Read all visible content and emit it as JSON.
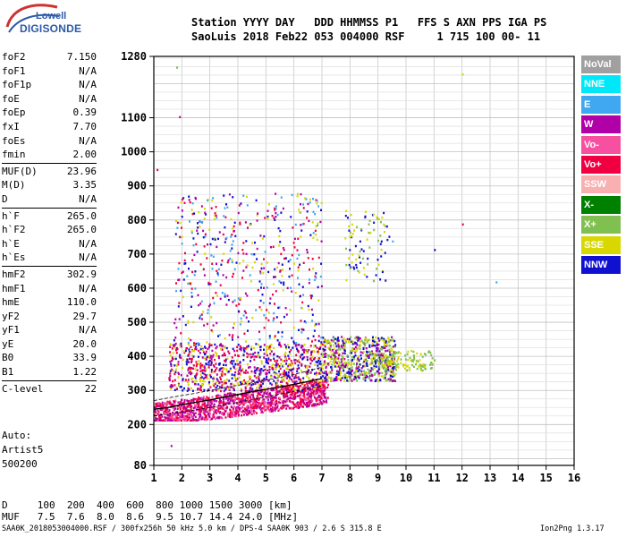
{
  "logo": {
    "line1": "Lowell",
    "line2": "DIGISONDE"
  },
  "header": {
    "line1": "Station YYYY DAY   DDD HHMMSS P1   FFS S AXN PPS IGA PS",
    "line2": "SaoLuis 2018 Feb22 053 004000 RSF     1 715 100 00- 11"
  },
  "params": [
    {
      "label": "foF2",
      "value": "7.150"
    },
    {
      "label": "foF1",
      "value": "N/A"
    },
    {
      "label": "foF1p",
      "value": "N/A"
    },
    {
      "label": "foE",
      "value": "N/A"
    },
    {
      "label": "foEp",
      "value": "0.39"
    },
    {
      "label": "fxI",
      "value": "7.70"
    },
    {
      "label": "foEs",
      "value": "N/A"
    },
    {
      "label": "fmin",
      "value": "2.00"
    },
    {
      "label": "MUF(D)",
      "value": "23.96"
    },
    {
      "label": "M(D)",
      "value": "3.35"
    },
    {
      "label": "D",
      "value": "N/A"
    },
    {
      "label": "h`F",
      "value": "265.0"
    },
    {
      "label": "h`F2",
      "value": "265.0"
    },
    {
      "label": "h`E",
      "value": "N/A"
    },
    {
      "label": "h`Es",
      "value": "N/A"
    },
    {
      "label": "hmF2",
      "value": "302.9"
    },
    {
      "label": "hmF1",
      "value": "N/A"
    },
    {
      "label": "hmE",
      "value": "110.0"
    },
    {
      "label": "yF2",
      "value": "29.7"
    },
    {
      "label": "yF1",
      "value": "N/A"
    },
    {
      "label": "yE",
      "value": "20.0"
    },
    {
      "label": "B0",
      "value": "33.9"
    },
    {
      "label": "B1",
      "value": "1.22"
    },
    {
      "label": "C-level",
      "value": "22"
    }
  ],
  "auto": {
    "line1": "Auto:",
    "line2": "Artist5",
    "line3": "500200"
  },
  "legend": [
    {
      "label": "NoVal",
      "color": "#a0a0a0"
    },
    {
      "label": "NNE",
      "color": "#00e8f8"
    },
    {
      "label": "E",
      "color": "#40a8f0"
    },
    {
      "label": "W",
      "color": "#b000a8"
    },
    {
      "label": "Vo-",
      "color": "#f850a0"
    },
    {
      "label": "Vo+",
      "color": "#f00040"
    },
    {
      "label": "SSW",
      "color": "#f8b0b0"
    },
    {
      "label": "X-",
      "color": "#008000"
    },
    {
      "label": "X+",
      "color": "#80c050"
    },
    {
      "label": "SSE",
      "color": "#d8d800"
    },
    {
      "label": "NNW",
      "color": "#1010d0"
    }
  ],
  "bottom": {
    "d_row": "D     100  200  400  600  800 1000 1500 3000 [km]",
    "muf_row": "MUF   7.5  7.6  8.0  8.6  9.5 10.7 14.4 24.0 [MHz]",
    "footer_left": "SAA0K_2018053004000.RSF / 300fx256h 50 kHz 5.0 km / DPS-4 SAA0K 903 / 2.6 S 315.8 E",
    "footer_right": "Ion2Png 1.3.17"
  },
  "chart_data": {
    "type": "scatter",
    "x_ticks": [
      1,
      2,
      3,
      4,
      5,
      6,
      7,
      8,
      9,
      10,
      11,
      12,
      13,
      14,
      15,
      16
    ],
    "y_ticks": [
      80,
      200,
      300,
      400,
      500,
      600,
      700,
      800,
      900,
      1000,
      1100,
      1280
    ],
    "xlim": [
      1,
      16
    ],
    "ylim": [
      80,
      1280
    ],
    "grid": true,
    "legend_position": "right",
    "trace_points": [
      [
        1.0,
        245
      ],
      [
        1.5,
        250
      ],
      [
        2.0,
        258
      ],
      [
        2.5,
        265
      ],
      [
        3.0,
        272
      ],
      [
        3.5,
        280
      ],
      [
        4.0,
        288
      ],
      [
        4.5,
        296
      ],
      [
        5.0,
        303
      ],
      [
        5.5,
        310
      ],
      [
        6.0,
        318
      ],
      [
        6.5,
        326
      ],
      [
        7.0,
        335
      ]
    ],
    "trace_upper": [
      [
        1.0,
        270
      ],
      [
        1.5,
        278
      ],
      [
        2.0,
        285
      ],
      [
        2.5,
        292
      ],
      [
        3.0,
        300
      ],
      [
        3.5,
        308
      ],
      [
        4.0,
        315
      ],
      [
        4.5,
        322
      ],
      [
        5.0,
        330
      ],
      [
        5.5,
        338
      ],
      [
        6.0,
        347
      ],
      [
        6.5,
        357
      ],
      [
        7.0,
        368
      ]
    ],
    "trace_lower": [
      [
        1.0,
        225
      ],
      [
        1.5,
        230
      ],
      [
        2.0,
        237
      ],
      [
        2.5,
        243
      ],
      [
        3.0,
        250
      ],
      [
        3.5,
        257
      ],
      [
        4.0,
        265
      ],
      [
        4.5,
        273
      ],
      [
        5.0,
        281
      ],
      [
        5.5,
        289
      ],
      [
        6.0,
        297
      ],
      [
        6.5,
        305
      ],
      [
        7.0,
        313
      ]
    ],
    "echo_clusters": [
      {
        "x": [
          1.0,
          7.2
        ],
        "y": [
          215,
          330
        ],
        "colors": [
          "#f00040",
          "#f850a0",
          "#b000a8"
        ]
      },
      {
        "x": [
          1.5,
          7.0
        ],
        "y": [
          300,
          440
        ],
        "colors": [
          "#1010d0",
          "#b000a8",
          "#d8d800",
          "#f00040"
        ]
      },
      {
        "x": [
          7.0,
          9.6
        ],
        "y": [
          330,
          460
        ],
        "colors": [
          "#d8d800",
          "#80c050",
          "#1010d0",
          "#b000a8"
        ]
      },
      {
        "x": [
          9.0,
          11.0
        ],
        "y": [
          360,
          420
        ],
        "colors": [
          "#d8d800",
          "#80c050"
        ]
      },
      {
        "x": [
          1.7,
          7.0
        ],
        "y": [
          440,
          880
        ],
        "colors": [
          "#d8d800",
          "#b000a8",
          "#f00040",
          "#1010d0",
          "#40a8f0"
        ]
      },
      {
        "x": [
          7.8,
          9.4
        ],
        "y": [
          620,
          830
        ],
        "colors": [
          "#d8d800",
          "#80c050",
          "#1010d0"
        ]
      }
    ]
  }
}
